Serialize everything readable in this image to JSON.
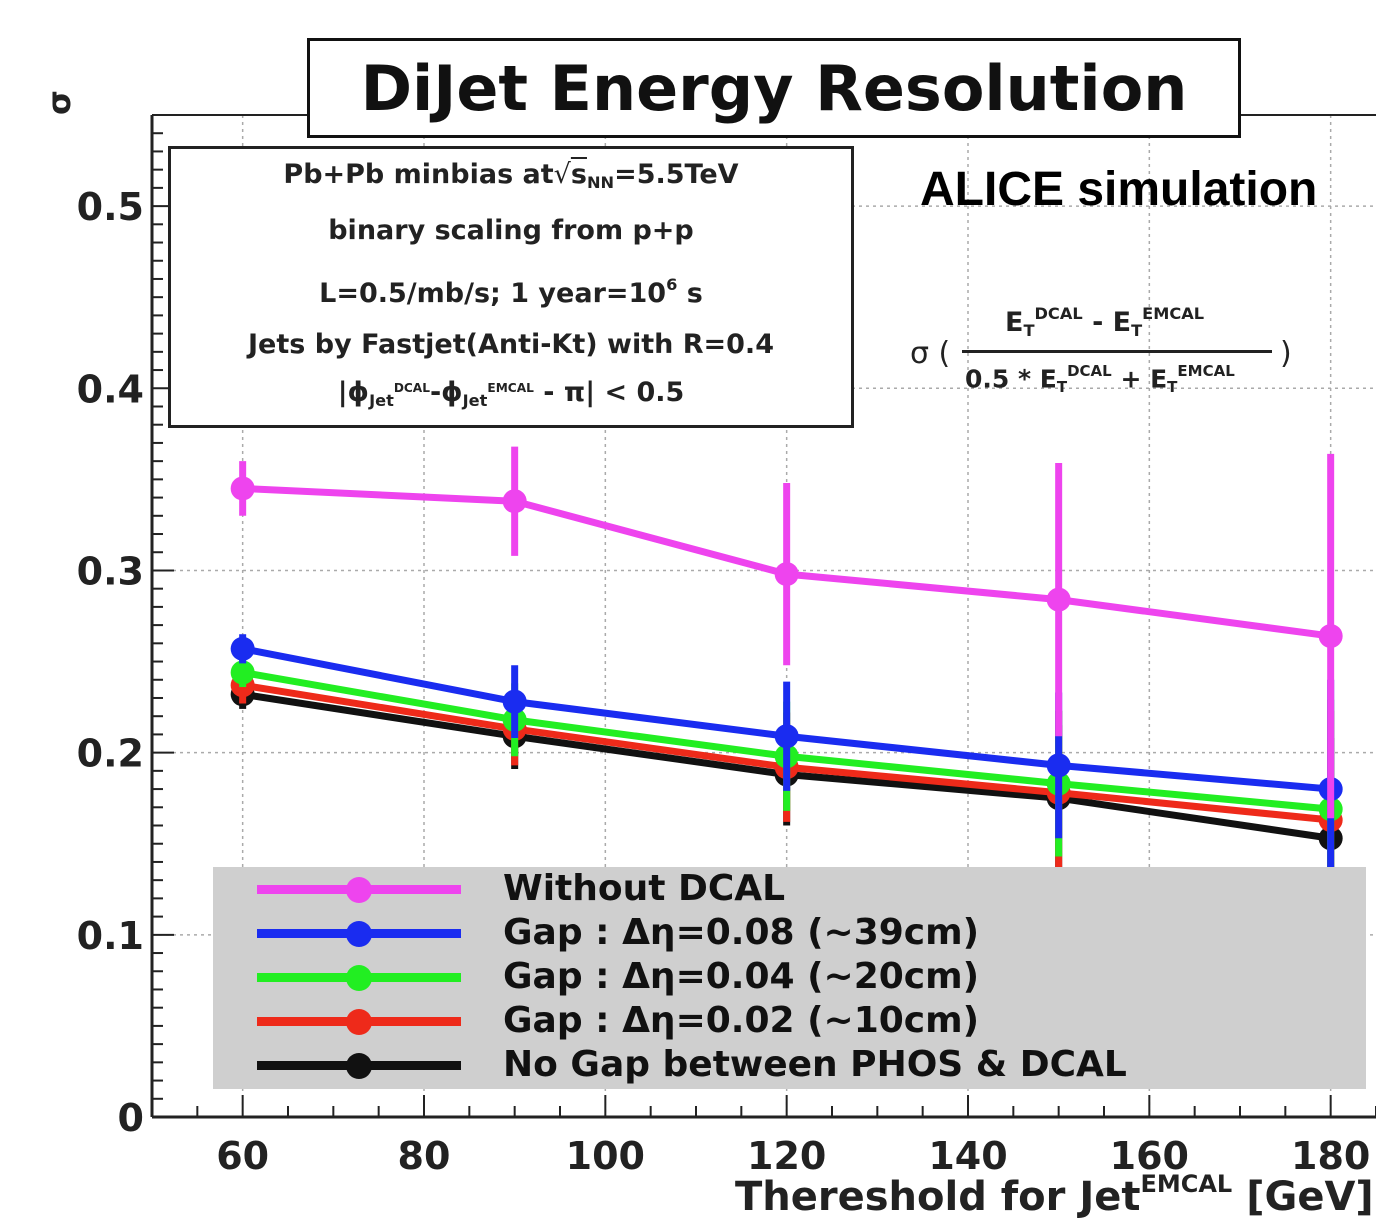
{
  "chart_data": {
    "type": "line",
    "title": "DiJet Energy Resolution",
    "annotation": "ALICE simulation",
    "ylabel": "σ",
    "xlabel": "Thereshold for Jet",
    "xlabel_sup": "EMCAL",
    "xlabel_unit": "[GeV]",
    "xlim": [
      50,
      185
    ],
    "ylim": [
      0,
      0.55
    ],
    "x_ticks": [
      60,
      80,
      100,
      120,
      140,
      160,
      180
    ],
    "y_ticks": [
      0,
      0.1,
      0.2,
      0.3,
      0.4,
      0.5
    ],
    "y_tick_labels": [
      "0",
      "0.1",
      "0.2",
      "0.3",
      "0.4",
      "0.5"
    ],
    "grid": true,
    "legend_position": "bottom",
    "x": [
      60,
      90,
      120,
      150,
      180
    ],
    "series": [
      {
        "name": "Without DCAL",
        "color": "#ee44ee",
        "values": [
          0.345,
          0.338,
          0.298,
          0.284,
          0.264
        ],
        "errors": [
          0.015,
          0.03,
          0.05,
          0.075,
          0.1
        ]
      },
      {
        "name": "Gap : Δη=0.08 (~39cm)",
        "color": "#1a2cf0",
        "values": [
          0.257,
          0.228,
          0.209,
          0.193,
          0.18
        ],
        "errors": [
          0.008,
          0.02,
          0.03,
          0.04,
          0.06
        ]
      },
      {
        "name": "Gap : Δη=0.04 (~20cm)",
        "color": "#22ee22",
        "values": [
          0.244,
          0.218,
          0.198,
          0.183,
          0.169
        ],
        "errors": [
          0.008,
          0.02,
          0.03,
          0.04,
          0.06
        ]
      },
      {
        "name": "Gap : Δη=0.02 (~10cm)",
        "color": "#ee2a1a",
        "values": [
          0.237,
          0.213,
          0.192,
          0.178,
          0.163
        ],
        "errors": [
          0.01,
          0.02,
          0.03,
          0.045,
          0.06
        ]
      },
      {
        "name": "No Gap between PHOS & DCAL",
        "color": "#111111",
        "values": [
          0.232,
          0.209,
          0.188,
          0.175,
          0.153
        ],
        "errors": [
          0.008,
          0.018,
          0.028,
          0.04,
          0.055
        ]
      }
    ],
    "info_box": {
      "line1_pre": "Pb+Pb minbias at",
      "line1_s": "s",
      "line1_sub": "NN",
      "line1_post": "=5.5TeV",
      "line2": "binary scaling from p+p",
      "line3_pre": "L=0.5/mb/s; 1 year=10",
      "line3_sup": "6",
      "line3_post": " s",
      "line4": "Jets by Fastjet(Anti-Kt) with R=0.4",
      "line5_a": "|ϕ",
      "line5_sub1": "Jet",
      "line5_sup1": "DCAL",
      "line5_b": "-ϕ",
      "line5_sub2": "Jet",
      "line5_sup2": "EMCAL",
      "line5_c": " - π| < 0.5"
    },
    "formula": {
      "sigma": "σ (",
      "close": ")",
      "num_a": "E",
      "num_a_sub": "T",
      "num_a_sup": "DCAL",
      "num_minus": " - E",
      "num_b_sub": "T",
      "num_b_sup": "EMCAL",
      "den_pre": "0.5 * E",
      "den_a_sub": "T",
      "den_a_sup": "DCAL",
      "den_plus": " + E",
      "den_b_sub": "T",
      "den_b_sup": "EMCAL"
    }
  }
}
